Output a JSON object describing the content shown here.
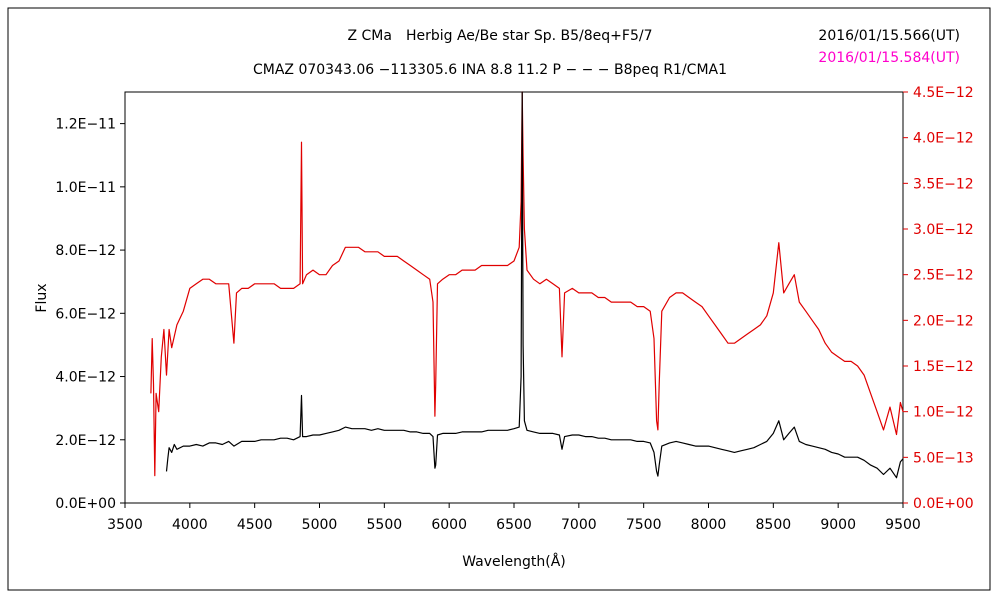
{
  "header": {
    "title_line1": "Z CMa　Herbig Ae/Be star Sp. B5/8eq+F5/7",
    "title_line2": "CMAZ 070343.06 −113305.6 INA 8.8 11.2 P − − − B8peq R1/CMA1",
    "timestamp_black": "2016/01/15.566(UT)",
    "timestamp_red": "2016/01/15.584(UT)"
  },
  "colors": {
    "series_black": "#000000",
    "series_red": "#e00000",
    "timestamp_red": "#ff00cc",
    "right_axis": "#e00000"
  },
  "chart_data": {
    "type": "line",
    "title": "Z CMa　Herbig Ae/Be star Sp. B5/8eq+F5/7",
    "subtitle": "CMAZ 070343.06 −113305.6 INA 8.8 11.2 P − − − B8peq R1/CMA1",
    "xlabel": "Wavelength(Å)",
    "ylabel": "Flux",
    "xlim": [
      3500,
      9500
    ],
    "ylim_left": [
      0,
      1.3e-11
    ],
    "ylim_right": [
      0,
      4.5e-12
    ],
    "x_ticks": [
      "3500",
      "4000",
      "4500",
      "5000",
      "5500",
      "6000",
      "6500",
      "7000",
      "7500",
      "8000",
      "8500",
      "9000",
      "9500"
    ],
    "y_ticks_left": [
      "0.0E+00",
      "2.0E−12",
      "4.0E−12",
      "6.0E−12",
      "8.0E−12",
      "1.0E−11",
      "1.2E−11"
    ],
    "y_ticks_right": [
      "0.0E+00",
      "5.0E−13",
      "1.0E−12",
      "1.5E−12",
      "2.0E−12",
      "2.5E−12",
      "3.0E−12",
      "3.5E−12",
      "4.0E−12",
      "4.5E−12"
    ],
    "grid": false,
    "series": [
      {
        "axis": "left",
        "color": "#000000",
        "points": [
          [
            3820,
            1e-12
          ],
          [
            3830,
            1.4e-12
          ],
          [
            3840,
            1.75e-12
          ],
          [
            3860,
            1.6e-12
          ],
          [
            3880,
            1.85e-12
          ],
          [
            3900,
            1.7e-12
          ],
          [
            3950,
            1.8e-12
          ],
          [
            4000,
            1.8e-12
          ],
          [
            4050,
            1.85e-12
          ],
          [
            4100,
            1.8e-12
          ],
          [
            4150,
            1.9e-12
          ],
          [
            4200,
            1.9e-12
          ],
          [
            4250,
            1.85e-12
          ],
          [
            4300,
            1.95e-12
          ],
          [
            4340,
            1.8e-12
          ],
          [
            4400,
            1.95e-12
          ],
          [
            4450,
            1.95e-12
          ],
          [
            4500,
            1.95e-12
          ],
          [
            4550,
            2e-12
          ],
          [
            4600,
            2e-12
          ],
          [
            4650,
            2e-12
          ],
          [
            4700,
            2.05e-12
          ],
          [
            4750,
            2.05e-12
          ],
          [
            4800,
            2e-12
          ],
          [
            4850,
            2.1e-12
          ],
          [
            4861,
            3.4e-12
          ],
          [
            4870,
            2.1e-12
          ],
          [
            4900,
            2.1e-12
          ],
          [
            4950,
            2.15e-12
          ],
          [
            5000,
            2.15e-12
          ],
          [
            5050,
            2.2e-12
          ],
          [
            5100,
            2.25e-12
          ],
          [
            5150,
            2.3e-12
          ],
          [
            5200,
            2.4e-12
          ],
          [
            5250,
            2.35e-12
          ],
          [
            5300,
            2.35e-12
          ],
          [
            5350,
            2.35e-12
          ],
          [
            5400,
            2.3e-12
          ],
          [
            5450,
            2.35e-12
          ],
          [
            5500,
            2.3e-12
          ],
          [
            5550,
            2.3e-12
          ],
          [
            5600,
            2.3e-12
          ],
          [
            5650,
            2.3e-12
          ],
          [
            5700,
            2.25e-12
          ],
          [
            5750,
            2.25e-12
          ],
          [
            5800,
            2.2e-12
          ],
          [
            5850,
            2.2e-12
          ],
          [
            5875,
            2.1e-12
          ],
          [
            5890,
            1.1e-12
          ],
          [
            5896,
            1.2e-12
          ],
          [
            5910,
            2.15e-12
          ],
          [
            5950,
            2.2e-12
          ],
          [
            6000,
            2.2e-12
          ],
          [
            6050,
            2.2e-12
          ],
          [
            6100,
            2.25e-12
          ],
          [
            6150,
            2.25e-12
          ],
          [
            6200,
            2.25e-12
          ],
          [
            6250,
            2.25e-12
          ],
          [
            6300,
            2.3e-12
          ],
          [
            6350,
            2.3e-12
          ],
          [
            6400,
            2.3e-12
          ],
          [
            6450,
            2.3e-12
          ],
          [
            6500,
            2.35e-12
          ],
          [
            6540,
            2.4e-12
          ],
          [
            6555,
            4e-12
          ],
          [
            6563,
            1.33e-11
          ],
          [
            6570,
            5e-12
          ],
          [
            6580,
            2.6e-12
          ],
          [
            6600,
            2.3e-12
          ],
          [
            6650,
            2.25e-12
          ],
          [
            6700,
            2.2e-12
          ],
          [
            6750,
            2.2e-12
          ],
          [
            6800,
            2.2e-12
          ],
          [
            6850,
            2.15e-12
          ],
          [
            6870,
            1.7e-12
          ],
          [
            6890,
            2.1e-12
          ],
          [
            6950,
            2.15e-12
          ],
          [
            7000,
            2.15e-12
          ],
          [
            7050,
            2.1e-12
          ],
          [
            7100,
            2.1e-12
          ],
          [
            7150,
            2.05e-12
          ],
          [
            7200,
            2.05e-12
          ],
          [
            7250,
            2e-12
          ],
          [
            7300,
            2e-12
          ],
          [
            7350,
            2e-12
          ],
          [
            7400,
            2e-12
          ],
          [
            7450,
            1.95e-12
          ],
          [
            7500,
            1.95e-12
          ],
          [
            7550,
            1.9e-12
          ],
          [
            7580,
            1.6e-12
          ],
          [
            7600,
            1e-12
          ],
          [
            7610,
            8.5e-13
          ],
          [
            7620,
            1.2e-12
          ],
          [
            7640,
            1.8e-12
          ],
          [
            7700,
            1.9e-12
          ],
          [
            7750,
            1.95e-12
          ],
          [
            7800,
            1.9e-12
          ],
          [
            7850,
            1.85e-12
          ],
          [
            7900,
            1.8e-12
          ],
          [
            7950,
            1.8e-12
          ],
          [
            8000,
            1.8e-12
          ],
          [
            8050,
            1.75e-12
          ],
          [
            8100,
            1.7e-12
          ],
          [
            8150,
            1.65e-12
          ],
          [
            8200,
            1.6e-12
          ],
          [
            8250,
            1.65e-12
          ],
          [
            8300,
            1.7e-12
          ],
          [
            8350,
            1.75e-12
          ],
          [
            8400,
            1.85e-12
          ],
          [
            8450,
            1.95e-12
          ],
          [
            8500,
            2.2e-12
          ],
          [
            8542,
            2.6e-12
          ],
          [
            8580,
            2e-12
          ],
          [
            8620,
            2.2e-12
          ],
          [
            8662,
            2.4e-12
          ],
          [
            8700,
            1.95e-12
          ],
          [
            8750,
            1.85e-12
          ],
          [
            8800,
            1.8e-12
          ],
          [
            8850,
            1.75e-12
          ],
          [
            8900,
            1.7e-12
          ],
          [
            8950,
            1.6e-12
          ],
          [
            9000,
            1.55e-12
          ],
          [
            9050,
            1.45e-12
          ],
          [
            9100,
            1.45e-12
          ],
          [
            9150,
            1.45e-12
          ],
          [
            9200,
            1.35e-12
          ],
          [
            9250,
            1.2e-12
          ],
          [
            9300,
            1.1e-12
          ],
          [
            9350,
            9e-13
          ],
          [
            9400,
            1.1e-12
          ],
          [
            9450,
            8e-13
          ],
          [
            9480,
            1.3e-12
          ],
          [
            9500,
            1.4e-12
          ]
        ]
      },
      {
        "axis": "right",
        "color": "#e00000",
        "points": [
          [
            3700,
            1.2e-12
          ],
          [
            3710,
            1.8e-12
          ],
          [
            3720,
            1.3e-12
          ],
          [
            3730,
            3e-13
          ],
          [
            3740,
            1.2e-12
          ],
          [
            3760,
            1e-12
          ],
          [
            3780,
            1.6e-12
          ],
          [
            3800,
            1.9e-12
          ],
          [
            3820,
            1.4e-12
          ],
          [
            3840,
            1.9e-12
          ],
          [
            3860,
            1.7e-12
          ],
          [
            3900,
            1.95e-12
          ],
          [
            3950,
            2.1e-12
          ],
          [
            4000,
            2.35e-12
          ],
          [
            4050,
            2.4e-12
          ],
          [
            4100,
            2.45e-12
          ],
          [
            4150,
            2.45e-12
          ],
          [
            4200,
            2.4e-12
          ],
          [
            4250,
            2.4e-12
          ],
          [
            4300,
            2.4e-12
          ],
          [
            4340,
            1.75e-12
          ],
          [
            4360,
            2.3e-12
          ],
          [
            4400,
            2.35e-12
          ],
          [
            4450,
            2.35e-12
          ],
          [
            4500,
            2.4e-12
          ],
          [
            4550,
            2.4e-12
          ],
          [
            4600,
            2.4e-12
          ],
          [
            4650,
            2.4e-12
          ],
          [
            4700,
            2.35e-12
          ],
          [
            4750,
            2.35e-12
          ],
          [
            4800,
            2.35e-12
          ],
          [
            4850,
            2.4e-12
          ],
          [
            4861,
            3.95e-12
          ],
          [
            4870,
            2.4e-12
          ],
          [
            4900,
            2.5e-12
          ],
          [
            4950,
            2.55e-12
          ],
          [
            5000,
            2.5e-12
          ],
          [
            5050,
            2.5e-12
          ],
          [
            5100,
            2.6e-12
          ],
          [
            5150,
            2.65e-12
          ],
          [
            5200,
            2.8e-12
          ],
          [
            5250,
            2.8e-12
          ],
          [
            5300,
            2.8e-12
          ],
          [
            5350,
            2.75e-12
          ],
          [
            5400,
            2.75e-12
          ],
          [
            5450,
            2.75e-12
          ],
          [
            5500,
            2.7e-12
          ],
          [
            5550,
            2.7e-12
          ],
          [
            5600,
            2.7e-12
          ],
          [
            5650,
            2.65e-12
          ],
          [
            5700,
            2.6e-12
          ],
          [
            5750,
            2.55e-12
          ],
          [
            5800,
            2.5e-12
          ],
          [
            5850,
            2.45e-12
          ],
          [
            5875,
            2.2e-12
          ],
          [
            5890,
            9.5e-13
          ],
          [
            5896,
            1.3e-12
          ],
          [
            5910,
            2.4e-12
          ],
          [
            5950,
            2.45e-12
          ],
          [
            6000,
            2.5e-12
          ],
          [
            6050,
            2.5e-12
          ],
          [
            6100,
            2.55e-12
          ],
          [
            6150,
            2.55e-12
          ],
          [
            6200,
            2.55e-12
          ],
          [
            6250,
            2.6e-12
          ],
          [
            6300,
            2.6e-12
          ],
          [
            6350,
            2.6e-12
          ],
          [
            6400,
            2.6e-12
          ],
          [
            6450,
            2.6e-12
          ],
          [
            6500,
            2.65e-12
          ],
          [
            6540,
            2.8e-12
          ],
          [
            6555,
            3.3e-12
          ],
          [
            6563,
            4.55e-12
          ],
          [
            6570,
            3.8e-12
          ],
          [
            6580,
            3e-12
          ],
          [
            6600,
            2.55e-12
          ],
          [
            6650,
            2.45e-12
          ],
          [
            6700,
            2.4e-12
          ],
          [
            6750,
            2.45e-12
          ],
          [
            6800,
            2.4e-12
          ],
          [
            6850,
            2.35e-12
          ],
          [
            6870,
            1.6e-12
          ],
          [
            6890,
            2.3e-12
          ],
          [
            6950,
            2.35e-12
          ],
          [
            7000,
            2.3e-12
          ],
          [
            7050,
            2.3e-12
          ],
          [
            7100,
            2.3e-12
          ],
          [
            7150,
            2.25e-12
          ],
          [
            7200,
            2.25e-12
          ],
          [
            7250,
            2.2e-12
          ],
          [
            7300,
            2.2e-12
          ],
          [
            7350,
            2.2e-12
          ],
          [
            7400,
            2.2e-12
          ],
          [
            7450,
            2.15e-12
          ],
          [
            7500,
            2.15e-12
          ],
          [
            7550,
            2.1e-12
          ],
          [
            7580,
            1.8e-12
          ],
          [
            7600,
            9e-13
          ],
          [
            7610,
            8e-13
          ],
          [
            7620,
            1.3e-12
          ],
          [
            7640,
            2.1e-12
          ],
          [
            7700,
            2.25e-12
          ],
          [
            7750,
            2.3e-12
          ],
          [
            7800,
            2.3e-12
          ],
          [
            7850,
            2.25e-12
          ],
          [
            7900,
            2.2e-12
          ],
          [
            7950,
            2.15e-12
          ],
          [
            8000,
            2.05e-12
          ],
          [
            8050,
            1.95e-12
          ],
          [
            8100,
            1.85e-12
          ],
          [
            8150,
            1.75e-12
          ],
          [
            8200,
            1.75e-12
          ],
          [
            8250,
            1.8e-12
          ],
          [
            8300,
            1.85e-12
          ],
          [
            8350,
            1.9e-12
          ],
          [
            8400,
            1.95e-12
          ],
          [
            8450,
            2.05e-12
          ],
          [
            8500,
            2.3e-12
          ],
          [
            8542,
            2.85e-12
          ],
          [
            8580,
            2.3e-12
          ],
          [
            8620,
            2.4e-12
          ],
          [
            8662,
            2.5e-12
          ],
          [
            8700,
            2.2e-12
          ],
          [
            8750,
            2.1e-12
          ],
          [
            8800,
            2e-12
          ],
          [
            8850,
            1.9e-12
          ],
          [
            8900,
            1.75e-12
          ],
          [
            8950,
            1.65e-12
          ],
          [
            9000,
            1.6e-12
          ],
          [
            9050,
            1.55e-12
          ],
          [
            9100,
            1.55e-12
          ],
          [
            9150,
            1.5e-12
          ],
          [
            9200,
            1.4e-12
          ],
          [
            9250,
            1.2e-12
          ],
          [
            9300,
            1e-12
          ],
          [
            9350,
            8e-13
          ],
          [
            9400,
            1.05e-12
          ],
          [
            9450,
            7.5e-13
          ],
          [
            9480,
            1.1e-12
          ],
          [
            9500,
            1e-12
          ]
        ]
      }
    ]
  }
}
